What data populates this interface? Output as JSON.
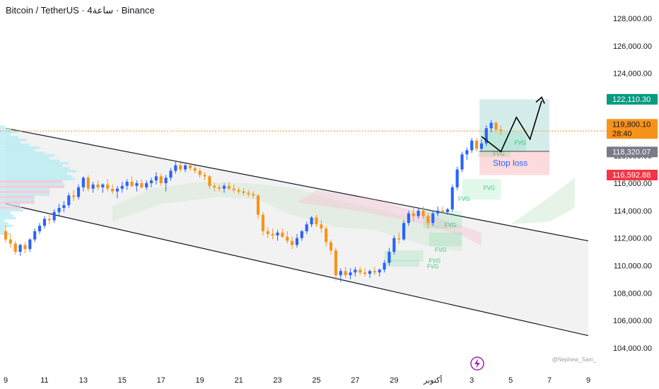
{
  "header": {
    "title": "Bitcoin / TetherUS · 4ساعة · Binance"
  },
  "colors": {
    "bull": "#2962ff",
    "bear": "#f7931a",
    "channel_fill": "#f1f1f1",
    "tp_fill": "#26a69a",
    "sl_fill": "#f23645",
    "current_price_line": "#f7931a",
    "fvg_green": "#2ecc71"
  },
  "chart_data": {
    "type": "candlestick",
    "y_ticks": [
      "128,000.00",
      "126,000.00",
      "124,000.00",
      "122,000.00",
      "120,000.00",
      "118,000.00",
      "116,000.00",
      "114,000.00",
      "112,000.00",
      "110,000.00",
      "108,000.00",
      "106,000.00",
      "104,000.00"
    ],
    "y_tick_values": [
      128000,
      126000,
      124000,
      122000,
      120000,
      118000,
      116000,
      114000,
      112000,
      110000,
      108000,
      106000,
      104000
    ],
    "ylim": [
      103500,
      129200
    ],
    "x_ticks": [
      "9",
      "11",
      "13",
      "15",
      "17",
      "19",
      "21",
      "23",
      "25",
      "27",
      "29",
      "أكتوبر",
      "3",
      "5",
      "7",
      "9"
    ],
    "xlim": [
      9,
      39
    ],
    "x_tick_days": [
      9,
      11,
      13,
      15,
      17,
      19,
      21,
      23,
      25,
      27,
      29,
      31,
      33,
      35,
      37,
      39
    ],
    "price_tags": {
      "take_profit": {
        "label": "122,110.30",
        "value": 122110.3
      },
      "current": {
        "label": "119,800.10",
        "countdown": "28:40",
        "value": 119800.1
      },
      "entry": {
        "label": "118,320.07",
        "value": 118320.07
      },
      "stop_loss": {
        "label": "116,592.88",
        "value": 116592.88
      }
    },
    "channel": {
      "upper": [
        [
          9,
          120000
        ],
        [
          39,
          111800
        ]
      ],
      "lower": [
        [
          9,
          114500
        ],
        [
          39,
          104900
        ]
      ]
    },
    "position": {
      "x_range": [
        33.4,
        37.0
      ],
      "take_profit": 122110.3,
      "entry": 118320.07,
      "stop_loss": 116592.88,
      "stop_loss_label": "Stop loss"
    },
    "projection_path": [
      [
        33.5,
        119400
      ],
      [
        34.5,
        118300
      ],
      [
        35.3,
        120800
      ],
      [
        36.0,
        119200
      ],
      [
        36.6,
        122000
      ]
    ],
    "fvg_zones": [
      {
        "label": "FVG",
        "x": [
          33.6,
          35.8
        ],
        "y": [
          118350,
          119750
        ]
      },
      {
        "label": "FVG",
        "x": [
          33.3,
          35.0
        ],
        "y": [
          117900,
          118400
        ]
      },
      {
        "label": "FVG",
        "x": [
          32.5,
          34.5
        ],
        "y": [
          114800,
          116300
        ]
      },
      {
        "label": "FVG",
        "x": [
          30.5,
          32.5
        ],
        "y": [
          112700,
          114000
        ]
      },
      {
        "label": "FVG",
        "x": [
          30.8,
          32.5
        ],
        "y": [
          111400,
          112400
        ]
      },
      {
        "label": "FVG",
        "x": [
          28.5,
          30.5
        ],
        "y": [
          110300,
          111100
        ]
      },
      {
        "label": "FVG",
        "x": [
          28.6,
          30.3
        ],
        "y": [
          109900,
          110400
        ]
      }
    ],
    "fvg_label_points": [
      [
        35.5,
        118800
      ],
      [
        34.4,
        118000
      ],
      [
        33.9,
        115500
      ],
      [
        32.6,
        114700
      ],
      [
        31.9,
        112800
      ],
      [
        31.4,
        111000
      ],
      [
        31.1,
        110200
      ],
      [
        31.0,
        109800
      ]
    ],
    "candles": [
      [
        9.0,
        112500,
        112900,
        111700,
        111900
      ],
      [
        9.25,
        111900,
        112300,
        111300,
        111600
      ],
      [
        9.5,
        111600,
        111800,
        110800,
        111000
      ],
      [
        9.75,
        111000,
        111600,
        110700,
        111500
      ],
      [
        10.0,
        111500,
        111700,
        110900,
        111200
      ],
      [
        10.25,
        111200,
        112000,
        111000,
        111900
      ],
      [
        10.5,
        111900,
        112700,
        111700,
        112500
      ],
      [
        10.75,
        112500,
        113100,
        112300,
        112900
      ],
      [
        11.0,
        112900,
        113600,
        112700,
        113400
      ],
      [
        11.25,
        113400,
        113800,
        113000,
        113300
      ],
      [
        11.5,
        113300,
        114100,
        113100,
        113900
      ],
      [
        11.75,
        113900,
        114500,
        113600,
        114200
      ],
      [
        12.0,
        114200,
        114700,
        113900,
        114400
      ],
      [
        12.25,
        114400,
        115300,
        114200,
        115100
      ],
      [
        12.5,
        115100,
        115500,
        114700,
        115000
      ],
      [
        12.75,
        115000,
        115900,
        114800,
        115700
      ],
      [
        13.0,
        115700,
        116500,
        115400,
        116400
      ],
      [
        13.25,
        116400,
        116600,
        115400,
        115600
      ],
      [
        13.5,
        115600,
        116100,
        115300,
        115900
      ],
      [
        13.75,
        115900,
        116200,
        115500,
        115700
      ],
      [
        14.0,
        115700,
        116000,
        115300,
        115900
      ],
      [
        14.25,
        115900,
        116300,
        115400,
        115600
      ],
      [
        14.5,
        115600,
        115900,
        115200,
        115400
      ],
      [
        14.75,
        115400,
        115800,
        114900,
        115600
      ],
      [
        15.0,
        115600,
        116100,
        115300,
        115800
      ],
      [
        15.25,
        115800,
        116300,
        115500,
        116100
      ],
      [
        15.5,
        116100,
        116500,
        115700,
        115800
      ],
      [
        15.75,
        115800,
        116200,
        115400,
        116000
      ],
      [
        16.0,
        116000,
        116300,
        115600,
        115700
      ],
      [
        16.25,
        115700,
        116200,
        115500,
        116000
      ],
      [
        16.5,
        116000,
        116400,
        115700,
        116200
      ],
      [
        16.75,
        116200,
        116800,
        115900,
        116500
      ],
      [
        17.0,
        116500,
        116700,
        115800,
        116000
      ],
      [
        17.25,
        116000,
        116600,
        115400,
        116400
      ],
      [
        17.5,
        116400,
        117100,
        116200,
        116900
      ],
      [
        17.75,
        116900,
        117600,
        116700,
        117300
      ],
      [
        18.0,
        117300,
        117500,
        116800,
        117000
      ],
      [
        18.25,
        117000,
        117400,
        116800,
        117300
      ],
      [
        18.5,
        117300,
        117500,
        116900,
        117100
      ],
      [
        18.75,
        117100,
        117300,
        116700,
        116900
      ],
      [
        19.0,
        116900,
        117100,
        116400,
        116600
      ],
      [
        19.25,
        116600,
        116800,
        116200,
        116500
      ],
      [
        19.5,
        116500,
        116600,
        115600,
        115800
      ],
      [
        19.75,
        115800,
        116000,
        115400,
        115700
      ],
      [
        20.0,
        115700,
        115900,
        115400,
        115600
      ],
      [
        20.25,
        115600,
        116000,
        115300,
        115800
      ],
      [
        20.5,
        115800,
        116100,
        115500,
        115600
      ],
      [
        20.75,
        115600,
        115900,
        115300,
        115500
      ],
      [
        21.0,
        115500,
        115700,
        115200,
        115400
      ],
      [
        21.25,
        115400,
        115600,
        115100,
        115300
      ],
      [
        21.5,
        115300,
        115500,
        115000,
        115200
      ],
      [
        21.75,
        115200,
        115400,
        114900,
        115100
      ],
      [
        22.0,
        115100,
        115200,
        113400,
        113700
      ],
      [
        22.25,
        113700,
        113900,
        112200,
        112500
      ],
      [
        22.5,
        112500,
        112800,
        112000,
        112300
      ],
      [
        22.75,
        112300,
        112700,
        111900,
        112200
      ],
      [
        23.0,
        112200,
        112600,
        111800,
        112400
      ],
      [
        23.25,
        112400,
        112700,
        112000,
        112100
      ],
      [
        23.5,
        112100,
        112500,
        111600,
        111800
      ],
      [
        23.75,
        111800,
        112100,
        111200,
        111500
      ],
      [
        24.0,
        111500,
        112300,
        111300,
        112000
      ],
      [
        24.25,
        112000,
        112600,
        111800,
        112500
      ],
      [
        24.5,
        112500,
        113200,
        112300,
        113000
      ],
      [
        24.75,
        113000,
        113600,
        112800,
        113500
      ],
      [
        25.0,
        113500,
        113700,
        112800,
        113000
      ],
      [
        25.25,
        113000,
        113300,
        112400,
        112700
      ],
      [
        25.5,
        112700,
        112900,
        111400,
        111700
      ],
      [
        25.75,
        111700,
        111900,
        110800,
        111100
      ],
      [
        26.0,
        111100,
        111300,
        108900,
        109300
      ],
      [
        26.25,
        109300,
        109800,
        108800,
        109600
      ],
      [
        26.5,
        109600,
        109900,
        109100,
        109300
      ],
      [
        26.75,
        109300,
        109800,
        109000,
        109500
      ],
      [
        27.0,
        109500,
        109900,
        109200,
        109700
      ],
      [
        27.25,
        109700,
        109900,
        109300,
        109500
      ],
      [
        27.5,
        109500,
        109800,
        109200,
        109400
      ],
      [
        27.75,
        109400,
        109700,
        109100,
        109600
      ],
      [
        28.0,
        109600,
        109900,
        109300,
        109500
      ],
      [
        28.25,
        109500,
        109800,
        109200,
        109700
      ],
      [
        28.5,
        109700,
        110400,
        109500,
        110200
      ],
      [
        28.75,
        110200,
        111300,
        110000,
        111000
      ],
      [
        29.0,
        111000,
        112200,
        110800,
        112000
      ],
      [
        29.25,
        112000,
        112400,
        111600,
        111900
      ],
      [
        29.5,
        111900,
        113300,
        111800,
        113100
      ],
      [
        29.75,
        113100,
        114000,
        112900,
        113800
      ],
      [
        30.0,
        113800,
        114200,
        113200,
        113600
      ],
      [
        30.25,
        113600,
        114200,
        113400,
        114000
      ],
      [
        30.5,
        114000,
        114300,
        113400,
        113600
      ],
      [
        30.75,
        113600,
        113800,
        112700,
        113100
      ],
      [
        31.0,
        113100,
        114000,
        112900,
        113800
      ],
      [
        31.25,
        113800,
        114300,
        113600,
        114000
      ],
      [
        31.5,
        114000,
        114300,
        113800,
        113900
      ],
      [
        31.75,
        113900,
        114200,
        113700,
        114100
      ],
      [
        32.0,
        114100,
        115900,
        113900,
        115700
      ],
      [
        32.25,
        115700,
        117200,
        115500,
        117000
      ],
      [
        32.5,
        117000,
        118300,
        116800,
        118100
      ],
      [
        32.75,
        118100,
        118600,
        117700,
        118400
      ],
      [
        33.0,
        118400,
        119300,
        118200,
        119100
      ],
      [
        33.25,
        119100,
        119300,
        118300,
        118500
      ],
      [
        33.5,
        118500,
        119200,
        118300,
        118900
      ],
      [
        33.75,
        118900,
        120200,
        118700,
        120000
      ],
      [
        34.0,
        120000,
        120600,
        119700,
        120400
      ],
      [
        34.25,
        120400,
        120500,
        119700,
        119900
      ],
      [
        34.5,
        119900,
        120200,
        119500,
        119800
      ]
    ]
  },
  "watermark": "@Nephew_Sam_"
}
